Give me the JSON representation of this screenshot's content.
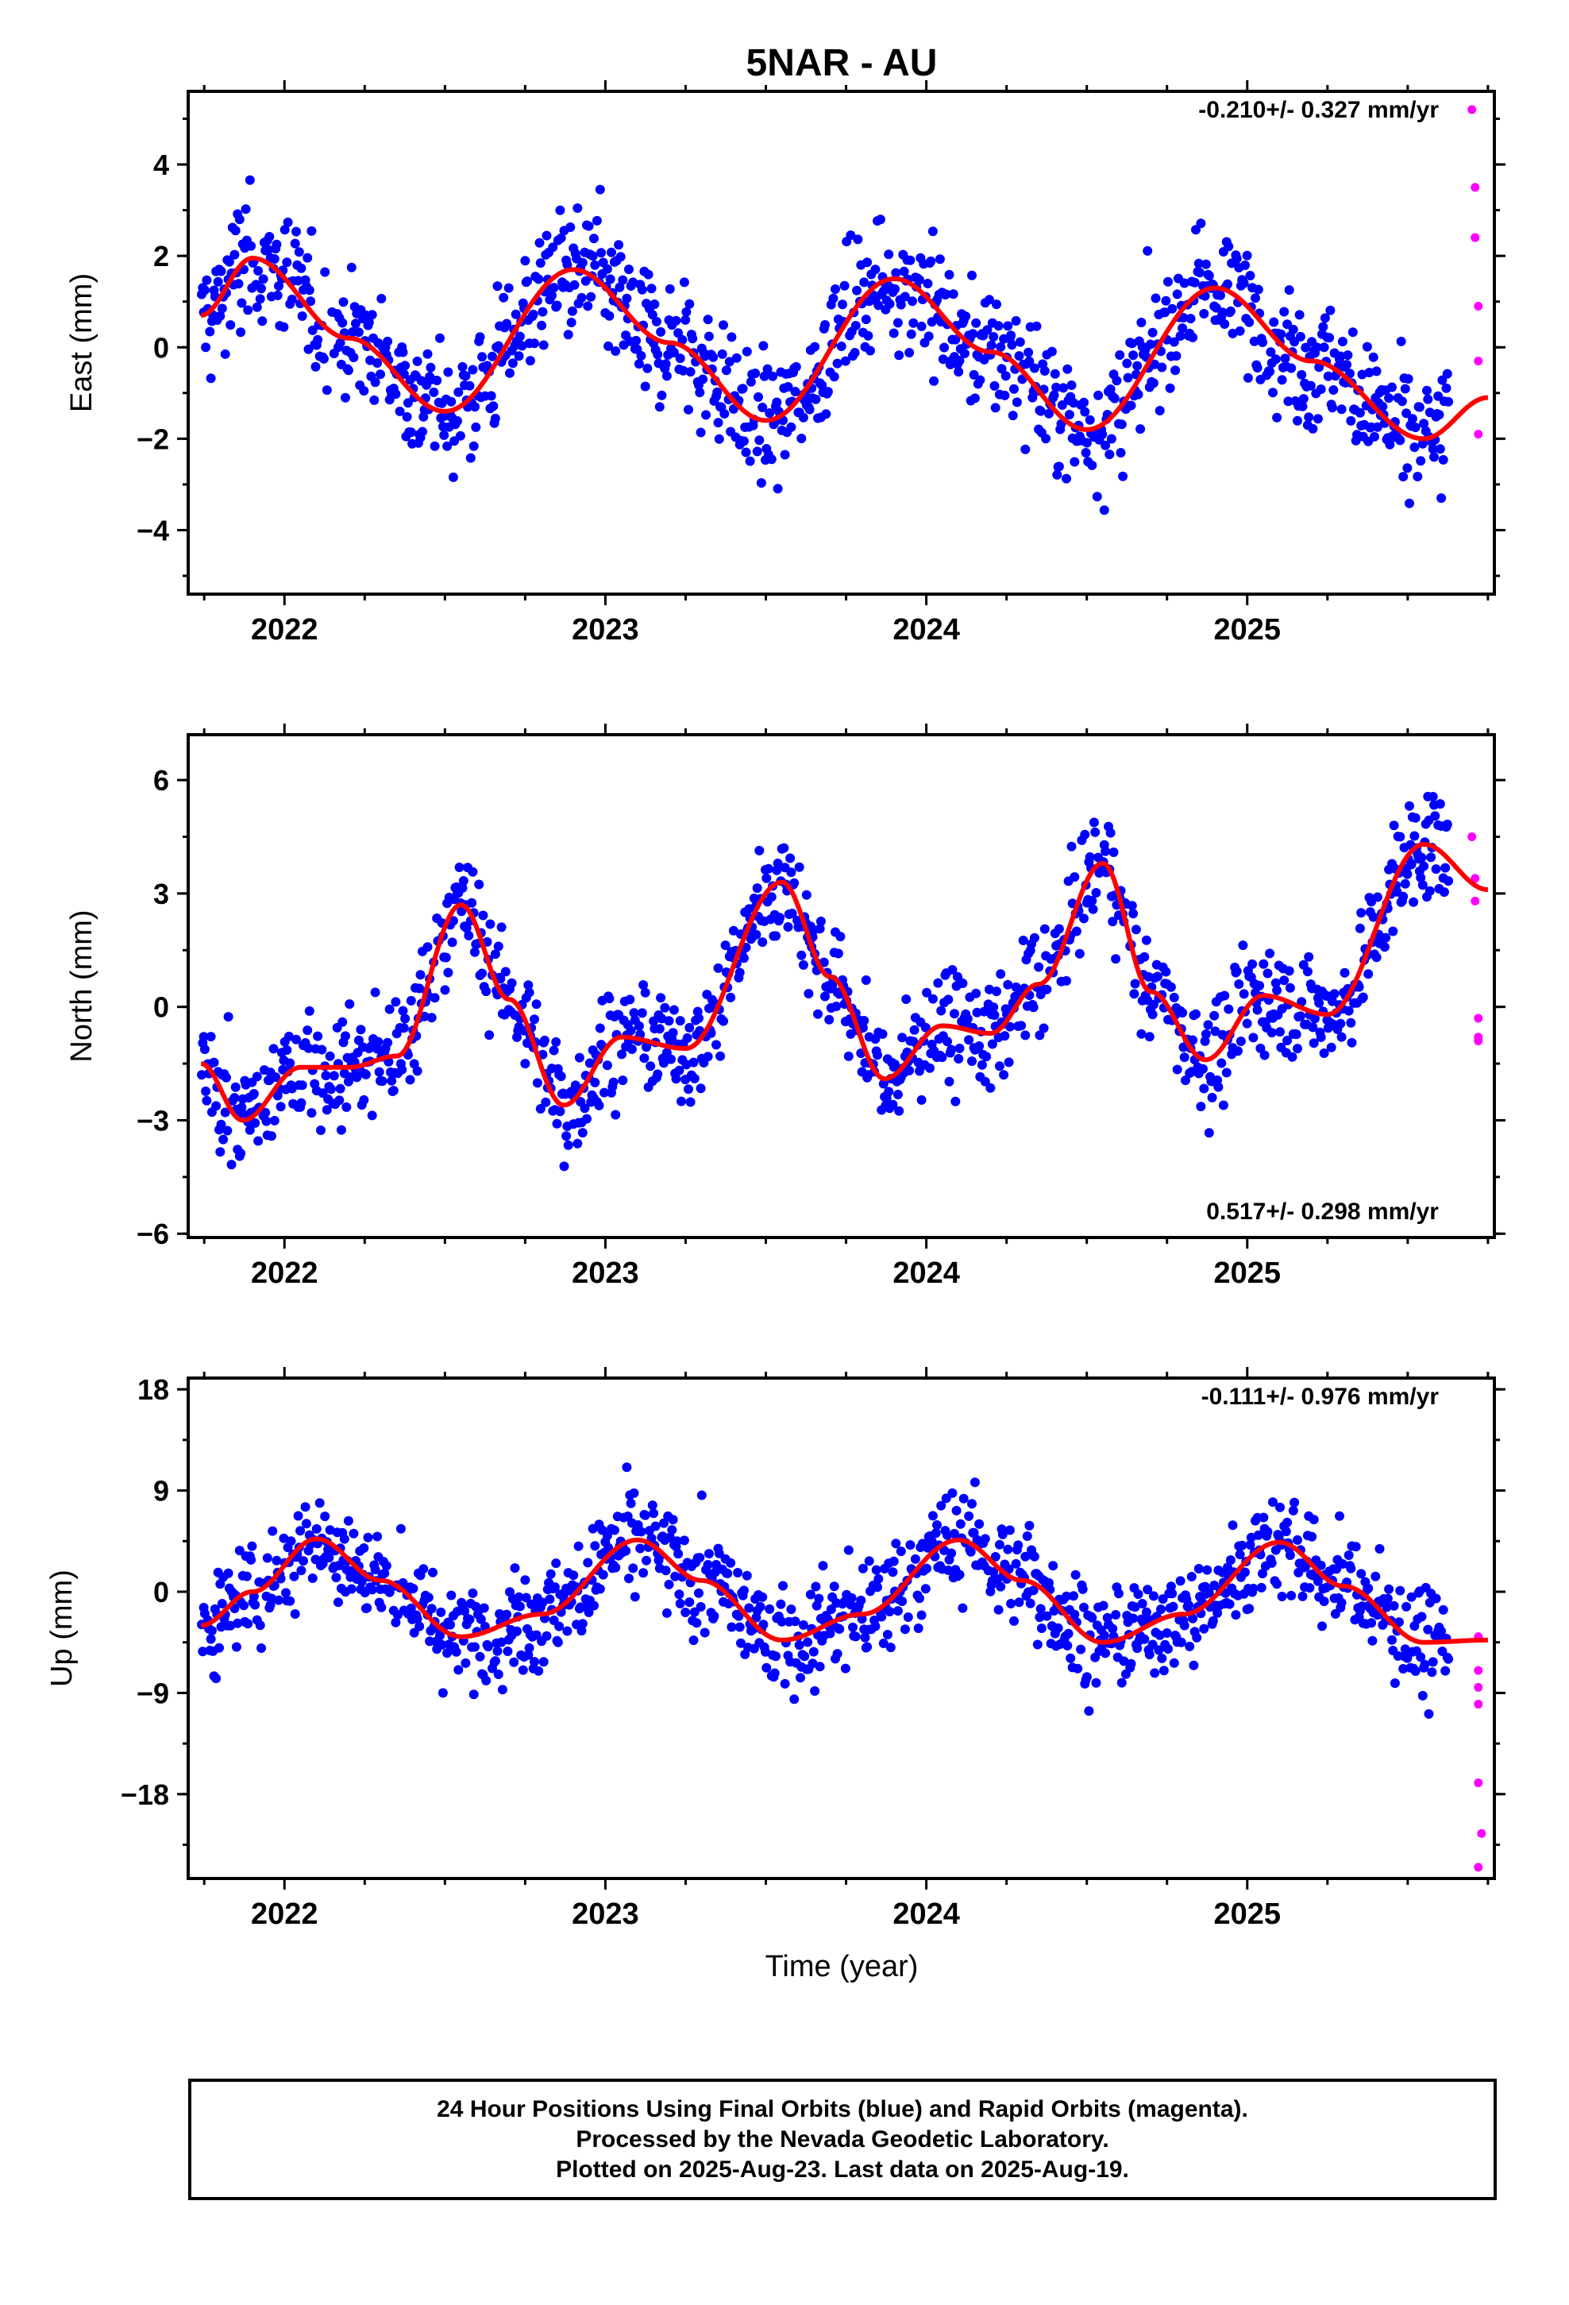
{
  "title": "5NAR - AU",
  "xlabel": "Time (year)",
  "x_ticks": [
    "2022",
    "2023",
    "2024",
    "2025"
  ],
  "colors": {
    "final_orbits": "#0000ff",
    "rapid_orbits": "#ff00ff",
    "model_fit": "#ff0000"
  },
  "footer": {
    "line1": "24 Hour Positions Using Final Orbits (blue) and Rapid Orbits (magenta).",
    "line2": "Processed by the Nevada Geodetic Laboratory.",
    "line3": "Plotted on 2025-Aug-23. Last data on 2025-Aug-19."
  },
  "chart_data": [
    {
      "type": "scatter",
      "ylabel": "East (mm)",
      "rate_label": "-0.210+/- 0.327 mm/yr",
      "xlim": [
        2021.7,
        2025.77
      ],
      "ylim": [
        -5.4,
        5.6
      ],
      "y_ticks": [
        "4",
        "2",
        "0",
        "−2",
        "−4"
      ],
      "y_tick_values": [
        4,
        2,
        0,
        -2,
        -4
      ],
      "model": {
        "name": "seasonal fit",
        "x": [
          2021.74,
          2021.9,
          2022.2,
          2022.5,
          2022.9,
          2023.2,
          2023.5,
          2023.9,
          2024.2,
          2024.5,
          2024.9,
          2025.2,
          2025.55,
          2025.75
        ],
        "y": [
          0.7,
          1.95,
          0.2,
          -1.4,
          1.7,
          0.1,
          -1.6,
          1.5,
          -0.1,
          -1.8,
          1.3,
          -0.3,
          -2.0,
          -1.1
        ]
      },
      "rapid_points": {
        "x": [
          2025.7,
          2025.71,
          2025.71,
          2025.72,
          2025.72,
          2025.72,
          2025.71
        ],
        "y": [
          5.2,
          3.5,
          2.4,
          0.9,
          -0.3,
          -1.9,
          2.4
        ]
      },
      "final_points": "dense daily positions 2021.74–2025.63 scattered around model"
    },
    {
      "type": "scatter",
      "ylabel": "North (mm)",
      "rate_label": "0.517+/- 0.298 mm/yr",
      "xlim": [
        2021.7,
        2025.77
      ],
      "ylim": [
        -6.1,
        7.2
      ],
      "y_ticks": [
        "6",
        "3",
        "0",
        "−3",
        "−6"
      ],
      "y_tick_values": [
        6,
        3,
        0,
        -3,
        -6
      ],
      "model": {
        "name": "seasonal fit",
        "x": [
          2021.74,
          2021.87,
          2022.05,
          2022.2,
          2022.35,
          2022.55,
          2022.7,
          2022.87,
          2023.05,
          2023.25,
          2023.55,
          2023.7,
          2023.87,
          2024.05,
          2024.2,
          2024.35,
          2024.55,
          2024.7,
          2024.87,
          2025.05,
          2025.25,
          2025.55,
          2025.75
        ],
        "y": [
          -1.5,
          -3.0,
          -1.6,
          -1.6,
          -1.3,
          2.7,
          0.2,
          -2.6,
          -0.8,
          -1.1,
          3.3,
          0.8,
          -1.9,
          -0.5,
          -0.7,
          0.6,
          3.8,
          0.4,
          -1.4,
          0.3,
          -0.2,
          4.3,
          3.1
        ]
      },
      "rapid_points": {
        "x": [
          2025.7,
          2025.71,
          2025.71,
          2025.72,
          2025.72,
          2025.72
        ],
        "y": [
          4.5,
          3.4,
          2.8,
          -0.3,
          -0.8,
          -0.9
        ]
      },
      "final_points": "dense daily positions 2021.74–2025.63 scattered around model"
    },
    {
      "type": "scatter",
      "ylabel": "Up (mm)",
      "rate_label": "-0.111+/- 0.976 mm/yr",
      "xlim": [
        2021.7,
        2025.77
      ],
      "ylim": [
        -25.5,
        19
      ],
      "y_ticks": [
        "18",
        "9",
        "0",
        "−9",
        "−18"
      ],
      "y_tick_values": [
        18,
        9,
        0,
        -9,
        -18
      ],
      "model": {
        "name": "seasonal fit",
        "x": [
          2021.74,
          2021.9,
          2022.1,
          2022.3,
          2022.55,
          2022.8,
          2023.1,
          2023.3,
          2023.55,
          2023.8,
          2024.1,
          2024.3,
          2024.55,
          2024.8,
          2025.1,
          2025.3,
          2025.55,
          2025.75
        ],
        "y": [
          -3,
          0,
          4.7,
          1,
          -4,
          -2,
          4.6,
          1,
          -4.3,
          -2,
          4.6,
          1,
          -4.5,
          -2,
          4.4,
          0.5,
          -4.5,
          -4.3
        ]
      },
      "rapid_points": {
        "x": [
          2025.72,
          2025.72,
          2025.72,
          2025.72,
          2025.72,
          2025.73,
          2025.72
        ],
        "y": [
          -4,
          -7,
          -8.5,
          -10,
          -17,
          -21.5,
          -24.5
        ]
      },
      "final_points": "dense daily positions 2021.74–2025.63 scattered around model"
    }
  ]
}
